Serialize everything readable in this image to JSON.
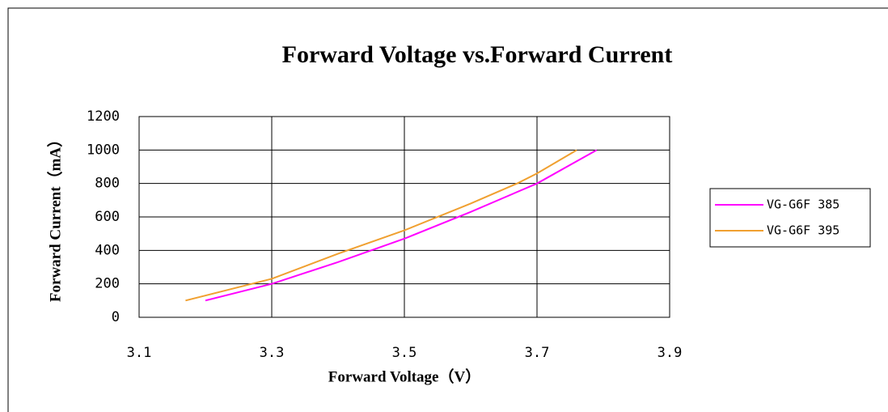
{
  "chart_data": {
    "type": "line",
    "title": "Forward Voltage vs.Forward Current",
    "x_label": "Forward Voltage（V）",
    "y_label": "Forward Current（mA）",
    "xlim": [
      3.1,
      3.9
    ],
    "xticks": [
      3.1,
      3.3,
      3.5,
      3.7,
      3.9
    ],
    "ylim": [
      0,
      1200
    ],
    "yticks": [
      0,
      200,
      400,
      600,
      800,
      1000,
      1200
    ],
    "grid": true,
    "legend": "right",
    "series": [
      {
        "name": "VG-G6F 385",
        "color": "#ff00ff",
        "x": [
          3.2,
          3.3,
          3.4,
          3.5,
          3.6,
          3.7,
          3.79
        ],
        "values": [
          100,
          200,
          330,
          470,
          630,
          800,
          1000
        ]
      },
      {
        "name": "VG-G6F 395",
        "color": "#f0a030",
        "x": [
          3.17,
          3.3,
          3.4,
          3.5,
          3.6,
          3.67,
          3.7,
          3.76
        ],
        "values": [
          100,
          230,
          380,
          520,
          680,
          800,
          860,
          1000
        ]
      }
    ]
  }
}
